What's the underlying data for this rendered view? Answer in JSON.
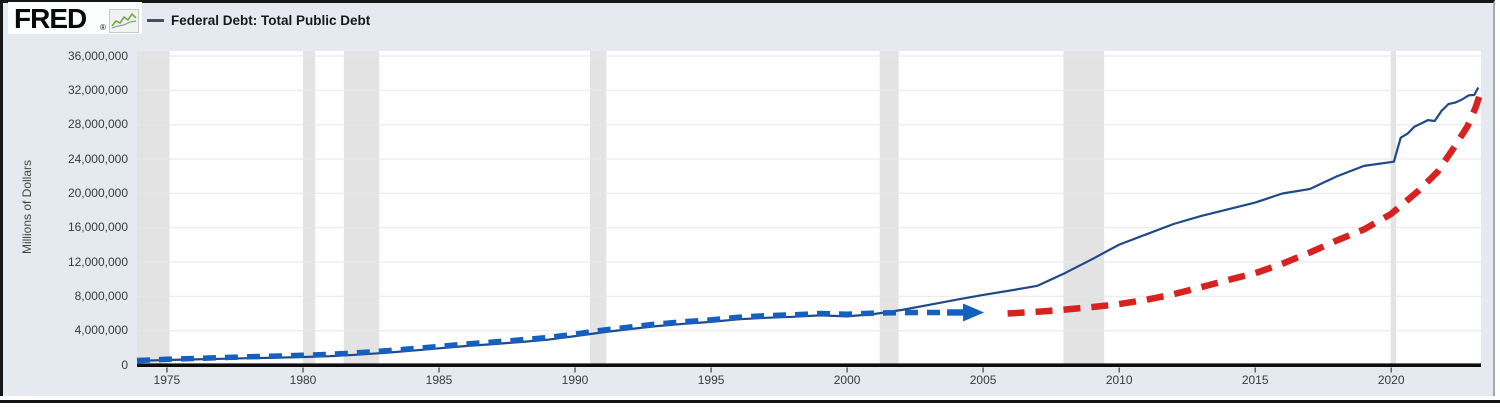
{
  "header": {
    "logo_text": "FRED",
    "registered_mark": "®",
    "legend": {
      "series_label": "Federal Debt: Total Public Debt"
    }
  },
  "chart_data": {
    "type": "line",
    "title": "Federal Debt: Total Public Debt",
    "ylabel": "Millions of Dollars",
    "ylim": [
      0,
      36000000
    ],
    "xlim": [
      1973.9,
      2023.3
    ],
    "grid": "horizontal only",
    "legend_position": "top-left header",
    "y_tick_values": [
      0,
      4000000,
      8000000,
      12000000,
      16000000,
      20000000,
      24000000,
      28000000,
      32000000,
      36000000
    ],
    "y_tick_labels": [
      "0",
      "4,000,000",
      "8,000,000",
      "12,000,000",
      "16,000,000",
      "20,000,000",
      "24,000,000",
      "28,000,000",
      "32,000,000",
      "36,000,000"
    ],
    "x_tick_values": [
      1975,
      1980,
      1985,
      1990,
      1995,
      2000,
      2005,
      2010,
      2015,
      2020
    ],
    "x_tick_labels": [
      "1975",
      "1980",
      "1985",
      "1990",
      "1995",
      "2000",
      "2005",
      "2010",
      "2015",
      "2020"
    ],
    "colors": {
      "plot_bg": "#ffffff",
      "page_bg": "#e5eaf0",
      "grid": "#e7e7e7",
      "recession_band": "#e3e3e3",
      "axis": "#0d0d0d",
      "tick": "#555555",
      "debt_line": "#1e4a86",
      "trend_arrow": "#145fc0",
      "projection": "#d8221f"
    },
    "series": [
      {
        "name": "Federal Debt: Total Public Debt",
        "units": "Millions of Dollars",
        "color": "#1e4a86",
        "points": [
          [
            1974,
            490000
          ],
          [
            1975,
            577000
          ],
          [
            1976,
            654000
          ],
          [
            1977,
            719000
          ],
          [
            1978,
            789000
          ],
          [
            1979,
            845000
          ],
          [
            1980,
            930000
          ],
          [
            1981,
            1029000
          ],
          [
            1982,
            1197000
          ],
          [
            1983,
            1411000
          ],
          [
            1984,
            1663000
          ],
          [
            1985,
            1946000
          ],
          [
            1986,
            2215000
          ],
          [
            1987,
            2432000
          ],
          [
            1988,
            2684000
          ],
          [
            1989,
            2953000
          ],
          [
            1990,
            3365000
          ],
          [
            1991,
            3802000
          ],
          [
            1992,
            4177000
          ],
          [
            1993,
            4536000
          ],
          [
            1994,
            4800000
          ],
          [
            1995,
            5016000
          ],
          [
            1996,
            5323000
          ],
          [
            1997,
            5502000
          ],
          [
            1998,
            5614000
          ],
          [
            1999,
            5776000
          ],
          [
            2000,
            5662000
          ],
          [
            2001,
            5943000
          ],
          [
            2002,
            6406000
          ],
          [
            2003,
            6998000
          ],
          [
            2004,
            7596000
          ],
          [
            2005,
            8170000
          ],
          [
            2006,
            8680000
          ],
          [
            2007,
            9229000
          ],
          [
            2008,
            10700000
          ],
          [
            2009,
            12311000
          ],
          [
            2010,
            14025000
          ],
          [
            2011,
            15223000
          ],
          [
            2012,
            16433000
          ],
          [
            2013,
            17352000
          ],
          [
            2014,
            18141000
          ],
          [
            2015,
            18922000
          ],
          [
            2016,
            19977000
          ],
          [
            2017,
            20493000
          ],
          [
            2018,
            21974000
          ],
          [
            2019,
            23201000
          ],
          [
            2020.1,
            23687000
          ],
          [
            2020.35,
            26478000
          ],
          [
            2020.6,
            26945000
          ],
          [
            2020.85,
            27748000
          ],
          [
            2021.1,
            28133000
          ],
          [
            2021.35,
            28529000
          ],
          [
            2021.6,
            28429000
          ],
          [
            2021.85,
            29617000
          ],
          [
            2022.1,
            30401000
          ],
          [
            2022.35,
            30569000
          ],
          [
            2022.6,
            30929000
          ],
          [
            2022.85,
            31420000
          ],
          [
            2023.05,
            31458000
          ],
          [
            2023.2,
            32332000
          ]
        ]
      }
    ],
    "annotations": [
      {
        "id": "historical-trend-arrow",
        "type": "dashed-arrow",
        "color": "#145fc0",
        "description": "thick blue dashed arrow tracing the 1974-2004 debt trend, arrowhead pointing right near 2005 at ~6,100,000",
        "points": [
          [
            1973.9,
            520000
          ],
          [
            1975,
            660000
          ],
          [
            1976,
            760000
          ],
          [
            1977,
            860000
          ],
          [
            1978,
            960000
          ],
          [
            1979,
            1040000
          ],
          [
            1980,
            1130000
          ],
          [
            1981,
            1250000
          ],
          [
            1982,
            1420000
          ],
          [
            1983,
            1640000
          ],
          [
            1984,
            1900000
          ],
          [
            1985,
            2160000
          ],
          [
            1986,
            2450000
          ],
          [
            1987,
            2680000
          ],
          [
            1988,
            2930000
          ],
          [
            1989,
            3200000
          ],
          [
            1990,
            3600000
          ],
          [
            1991,
            4050000
          ],
          [
            1992,
            4420000
          ],
          [
            1993,
            4780000
          ],
          [
            1994,
            5050000
          ],
          [
            1995,
            5260000
          ],
          [
            1996,
            5560000
          ],
          [
            1997,
            5740000
          ],
          [
            1998,
            5850000
          ],
          [
            1999,
            6000000
          ],
          [
            2000,
            5920000
          ],
          [
            2001,
            6050000
          ],
          [
            2002,
            6100000
          ],
          [
            2003.6,
            6120000
          ]
        ]
      },
      {
        "id": "exponential-projection",
        "type": "dashed-curve",
        "color": "#d8221f",
        "description": "thick red dashed exponential curve from ~2006 at ~6,000,000 rising to ~31,900,000 by 2023",
        "points": [
          [
            2005.9,
            6000000
          ],
          [
            2007,
            6200000
          ],
          [
            2008,
            6450000
          ],
          [
            2009,
            6750000
          ],
          [
            2010,
            7100000
          ],
          [
            2011,
            7600000
          ],
          [
            2012,
            8250000
          ],
          [
            2013,
            9050000
          ],
          [
            2014,
            9900000
          ],
          [
            2015,
            10700000
          ],
          [
            2016,
            11800000
          ],
          [
            2017,
            13100000
          ],
          [
            2018,
            14500000
          ],
          [
            2019,
            15800000
          ],
          [
            2020,
            17600000
          ],
          [
            2021,
            20300000
          ],
          [
            2021.7,
            22500000
          ],
          [
            2022.3,
            25300000
          ],
          [
            2022.8,
            27800000
          ],
          [
            2023.1,
            30000000
          ],
          [
            2023.3,
            31900000
          ]
        ]
      }
    ],
    "recession_bands": [
      [
        1973.9,
        1975.1
      ],
      [
        1980.0,
        1980.45
      ],
      [
        1981.5,
        1982.8
      ],
      [
        1990.55,
        1991.15
      ],
      [
        2001.2,
        2001.9
      ],
      [
        2007.95,
        2009.45
      ],
      [
        2019.98,
        2020.18
      ]
    ]
  }
}
